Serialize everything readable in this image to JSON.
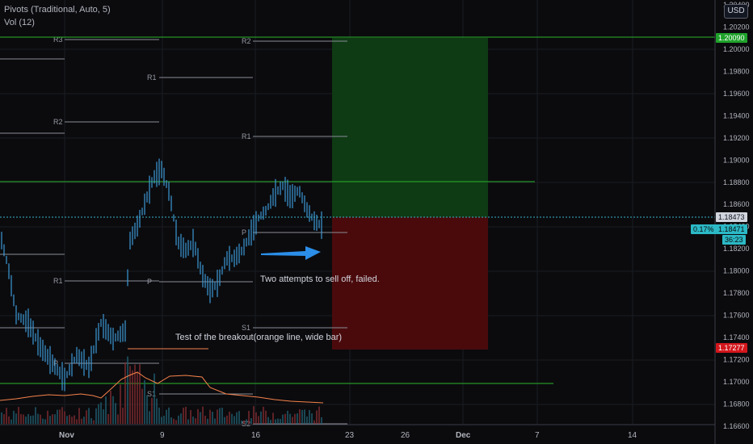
{
  "legend": {
    "pivots": "Pivots (Traditional, Auto, 5)",
    "vol": "Vol (12)"
  },
  "currency": "USD",
  "price_axis": {
    "labels": [
      "1.20400",
      "1.20200",
      "1.20000",
      "1.19800",
      "1.19600",
      "1.19400",
      "1.19200",
      "1.19000",
      "1.18800",
      "1.18600",
      "1.18400",
      "1.18200",
      "1.18000",
      "1.17800",
      "1.17600",
      "1.17400",
      "1.17200",
      "1.17000",
      "1.16800",
      "1.16600"
    ],
    "tags": {
      "top_green": "1.20090",
      "current": "1.18473",
      "change": "0.17%",
      "price": "1.18471",
      "countdown": "36:23",
      "stop": "1.17277"
    }
  },
  "time_axis": [
    "Nov",
    "9",
    "16",
    "23",
    "26",
    "Dec",
    "7",
    "14"
  ],
  "pivot_labels": [
    "R3",
    "R2",
    "R1",
    "R2",
    "R1",
    "P",
    "P",
    "R1",
    "S1",
    "P",
    "S1",
    "S2"
  ],
  "annotations": {
    "note1": "Two attempts to sell off, failed.",
    "note2": "Test of the breakout(orange line, wide bar)"
  },
  "colors": {
    "background": "#0b0b0e",
    "candle": "#3d9ad6",
    "green_line": "#2bb52b",
    "profit_zone": "#0e3a14",
    "loss_zone": "#4a0a0c",
    "orange": "#f7834a",
    "tag_cyan": "#2bb9c6",
    "tag_red": "#d3161c",
    "tag_green": "#1fa22b"
  }
}
